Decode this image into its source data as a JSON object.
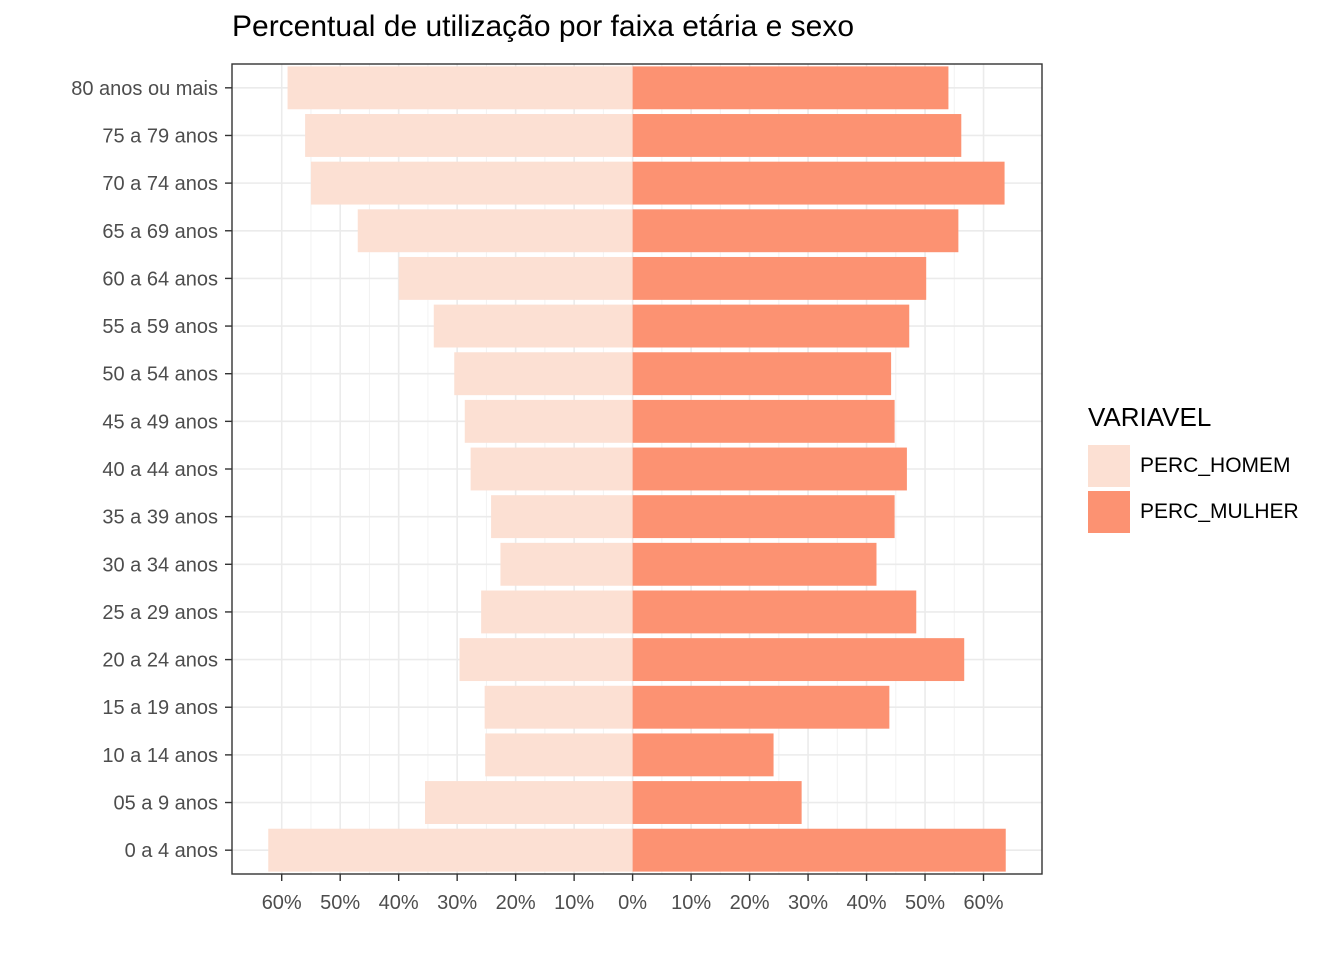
{
  "chart_data": {
    "type": "bar",
    "orientation": "horizontal",
    "title": "Percentual de utilização por faixa etária e sexo",
    "xlabel": "",
    "ylabel": "",
    "categories": [
      "80 anos ou mais",
      "75 a 79 anos",
      "70 a 74 anos",
      "65 a 69 anos",
      "60 a 64 anos",
      "55 a 59 anos",
      "50 a 54 anos",
      "45 a 49 anos",
      "40 a 44 anos",
      "35 a 39 anos",
      "30 a 34 anos",
      "25 a 29 anos",
      "20 a 24 anos",
      "15 a 19 anos",
      "10 a 14 anos",
      "05 a 9 anos",
      "0 a 4 anos"
    ],
    "series": [
      {
        "name": "PERC_HOMEM",
        "color": "#FCE0D3",
        "values": [
          -59,
          -56,
          -55,
          -47,
          -40,
          -34,
          -30.5,
          -28.7,
          -27.7,
          -24.2,
          -22.6,
          -25.9,
          -29.6,
          -25.3,
          -25.2,
          -35.5,
          -62.3
        ]
      },
      {
        "name": "PERC_MULHER",
        "color": "#FC9272",
        "values": [
          54,
          56.2,
          63.6,
          55.7,
          50.2,
          47.3,
          44.2,
          44.8,
          46.9,
          44.8,
          41.7,
          48.5,
          56.7,
          43.9,
          24.1,
          28.9,
          63.8
        ]
      }
    ],
    "xlim": [
      -68.5,
      70
    ],
    "xticks": [
      -60,
      -50,
      -40,
      -30,
      -20,
      -10,
      0,
      10,
      20,
      30,
      40,
      50,
      60
    ],
    "xtick_labels": [
      "60%",
      "50%",
      "40%",
      "30%",
      "20%",
      "10%",
      "0%",
      "10%",
      "20%",
      "30%",
      "40%",
      "50%",
      "60%"
    ],
    "grid": true,
    "legend": {
      "title": "VARIAVEL",
      "position": "right"
    }
  }
}
